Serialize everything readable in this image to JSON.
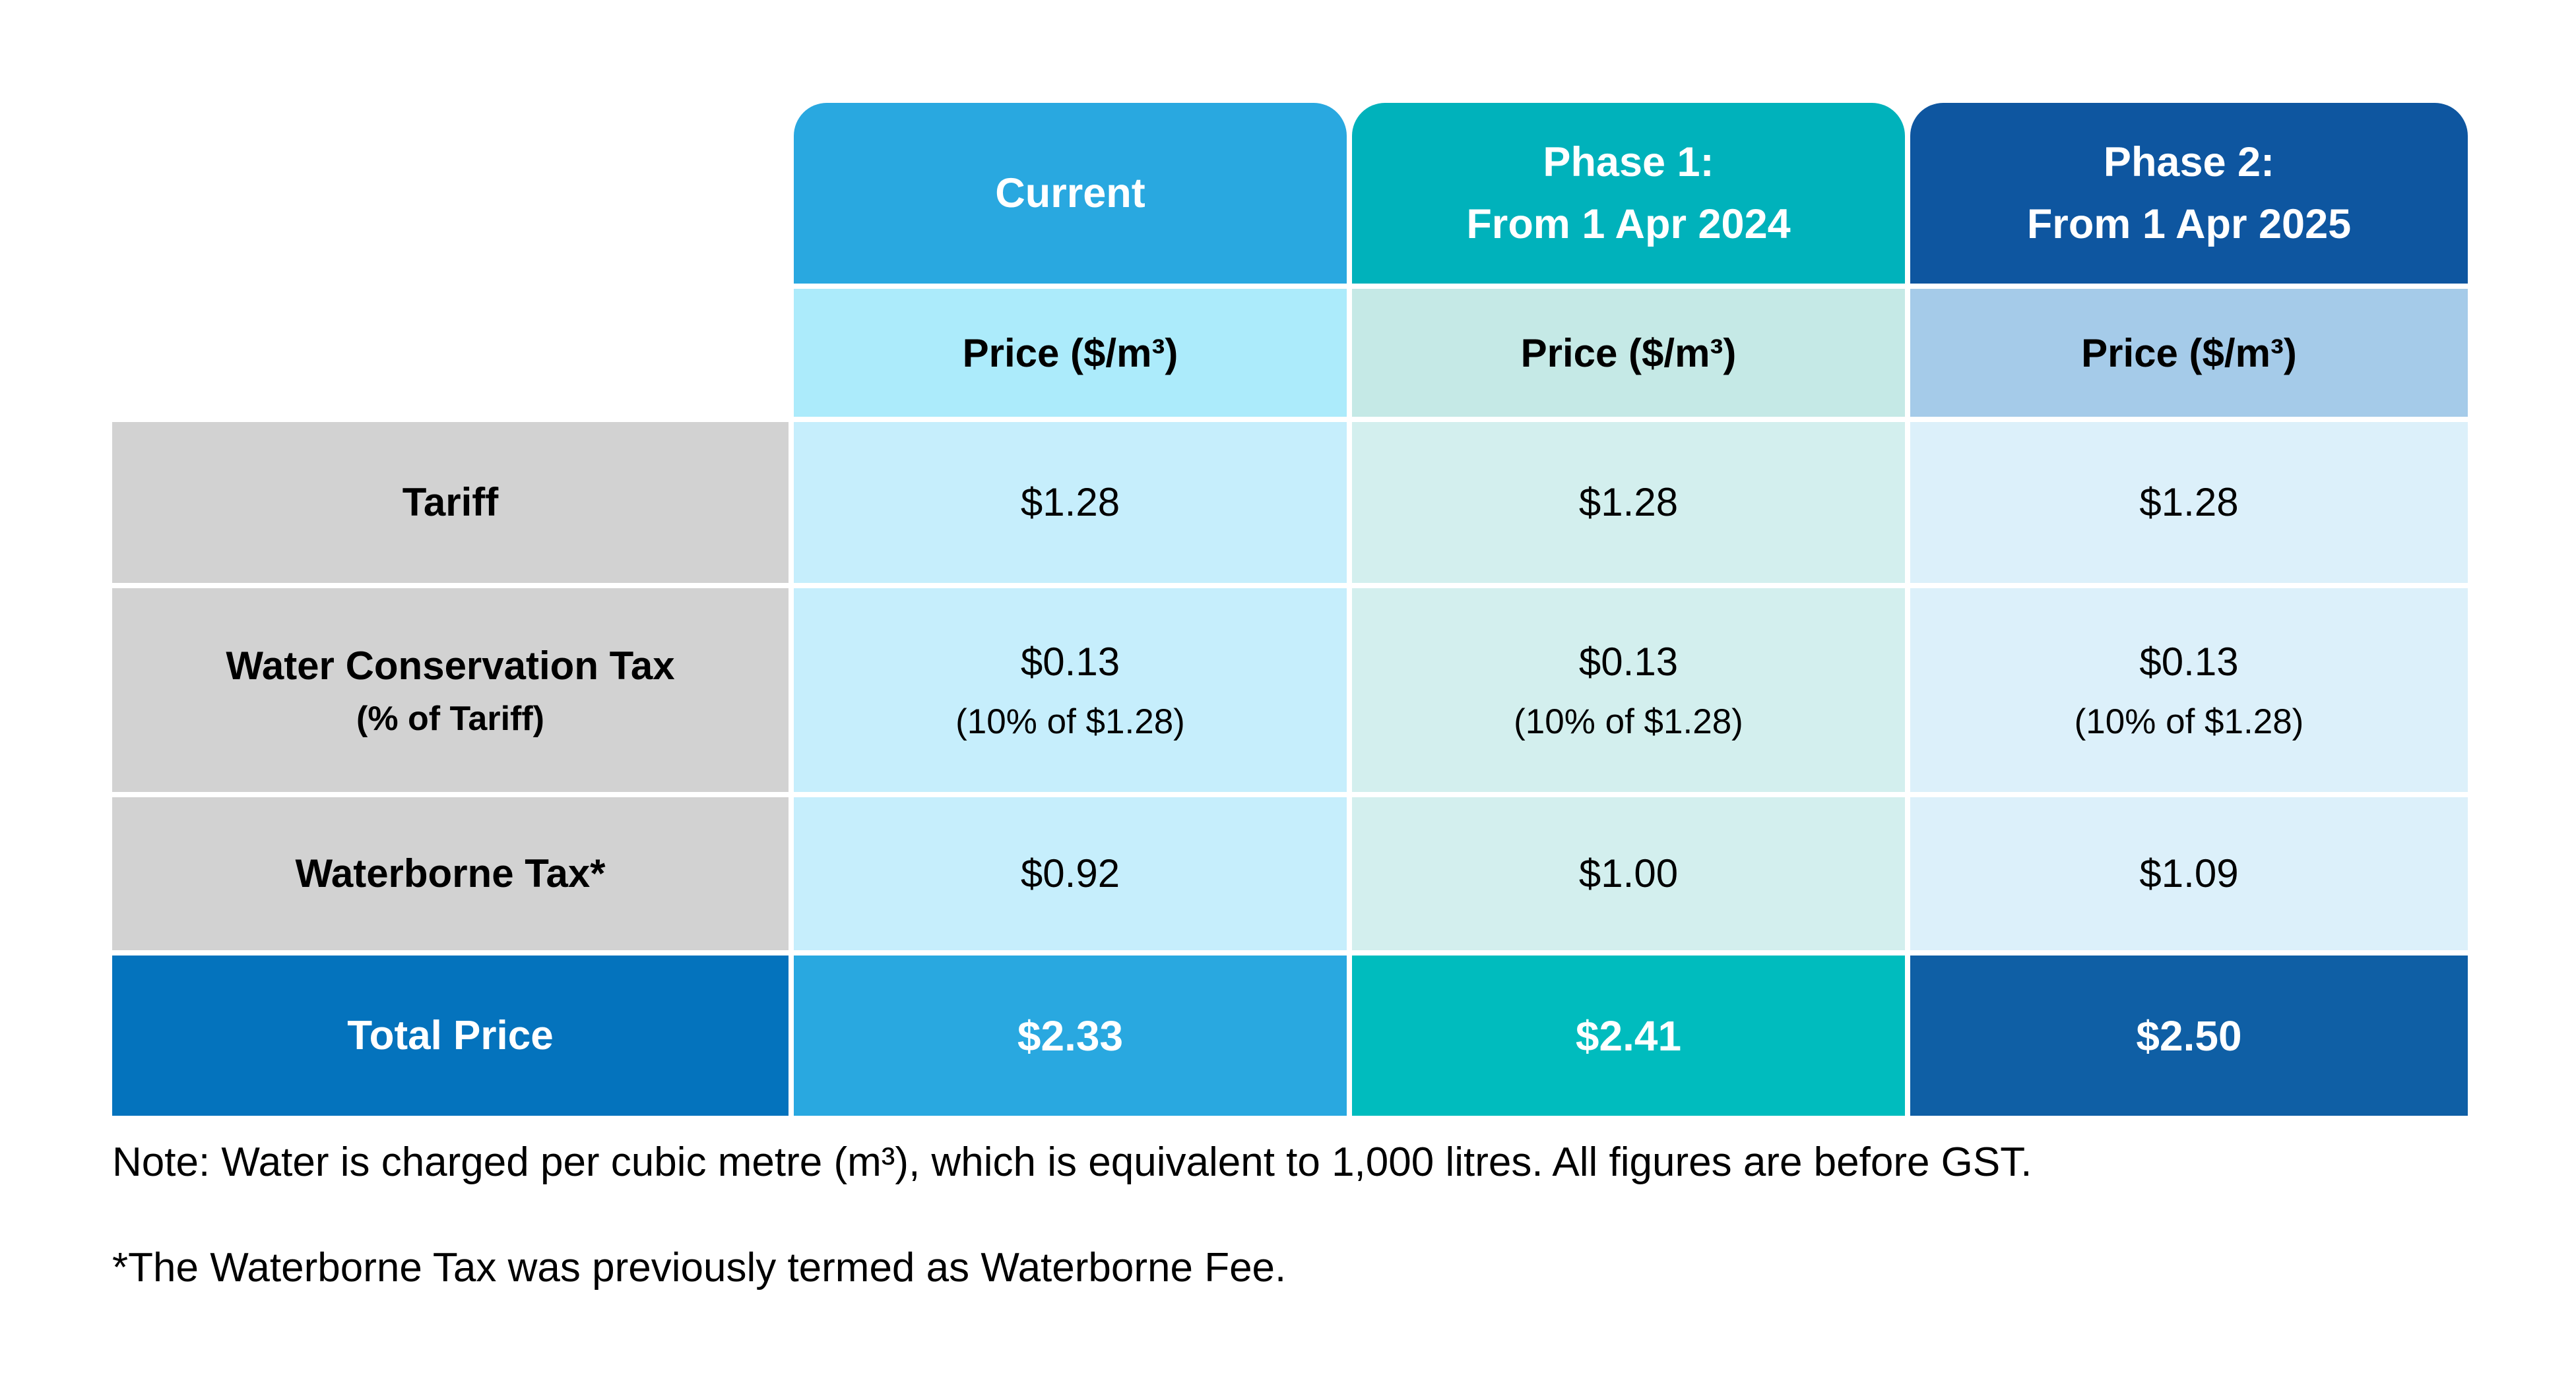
{
  "colors": {
    "header_bg": [
      "#29A8E0",
      "#00B2BB",
      "#0E56A0"
    ],
    "price_bg": [
      "#ACEBFB",
      "#C5E9E6",
      "#A5CBE9"
    ],
    "data_bg": [
      "#C6EEFC",
      "#D3EFEE",
      "#DCF0FA"
    ],
    "label_bg": "#D2D2D2",
    "total_label_bg": "#0473BD",
    "total_bg": [
      "#29A8E0",
      "#00BCBE",
      "#0F5FA5"
    ]
  },
  "table": {
    "columns": [
      {
        "header_line1": "Current",
        "header_line2": "",
        "price_label": "Price ($/m³)"
      },
      {
        "header_line1": "Phase 1:",
        "header_line2": "From 1 Apr 2024",
        "price_label": "Price ($/m³)"
      },
      {
        "header_line1": "Phase 2:",
        "header_line2": "From 1 Apr 2025",
        "price_label": "Price ($/m³)"
      }
    ],
    "rows": [
      {
        "label": "Tariff",
        "cells": [
          {
            "value": "$1.28"
          },
          {
            "value": "$1.28"
          },
          {
            "value": "$1.28"
          }
        ]
      },
      {
        "label": "Water Conservation Tax",
        "sublabel": "(% of Tariff)",
        "cells": [
          {
            "value": "$0.13",
            "subvalue": "(10% of $1.28)"
          },
          {
            "value": "$0.13",
            "subvalue": "(10% of $1.28)"
          },
          {
            "value": "$0.13",
            "subvalue": "(10% of $1.28)"
          }
        ]
      },
      {
        "label": "Waterborne Tax*",
        "cells": [
          {
            "value": "$0.92"
          },
          {
            "value": "$1.00"
          },
          {
            "value": "$1.09"
          }
        ]
      }
    ],
    "total": {
      "label": "Total Price",
      "values": [
        "$2.33",
        "$2.41",
        "$2.50"
      ]
    }
  },
  "notes": {
    "line1": "Note: Water is charged per cubic metre (m³), which is equivalent to 1,000 litres. All figures are before GST.",
    "line2": "*The Waterborne Tax was previously termed as Waterborne Fee."
  },
  "chart_data": {
    "type": "table",
    "title": "Water Price Phases",
    "columns": [
      "Current",
      "Phase 1: From 1 Apr 2024",
      "Phase 2: From 1 Apr 2025"
    ],
    "unit": "Price ($/m³)",
    "rows": [
      {
        "label": "Tariff",
        "values": [
          1.28,
          1.28,
          1.28
        ]
      },
      {
        "label": "Water Conservation Tax (% of Tariff)",
        "values": [
          0.13,
          0.13,
          0.13
        ],
        "note": "10% of $1.28"
      },
      {
        "label": "Waterborne Tax*",
        "values": [
          0.92,
          1.0,
          1.09
        ]
      },
      {
        "label": "Total Price",
        "values": [
          2.33,
          2.41,
          2.5
        ]
      }
    ]
  }
}
